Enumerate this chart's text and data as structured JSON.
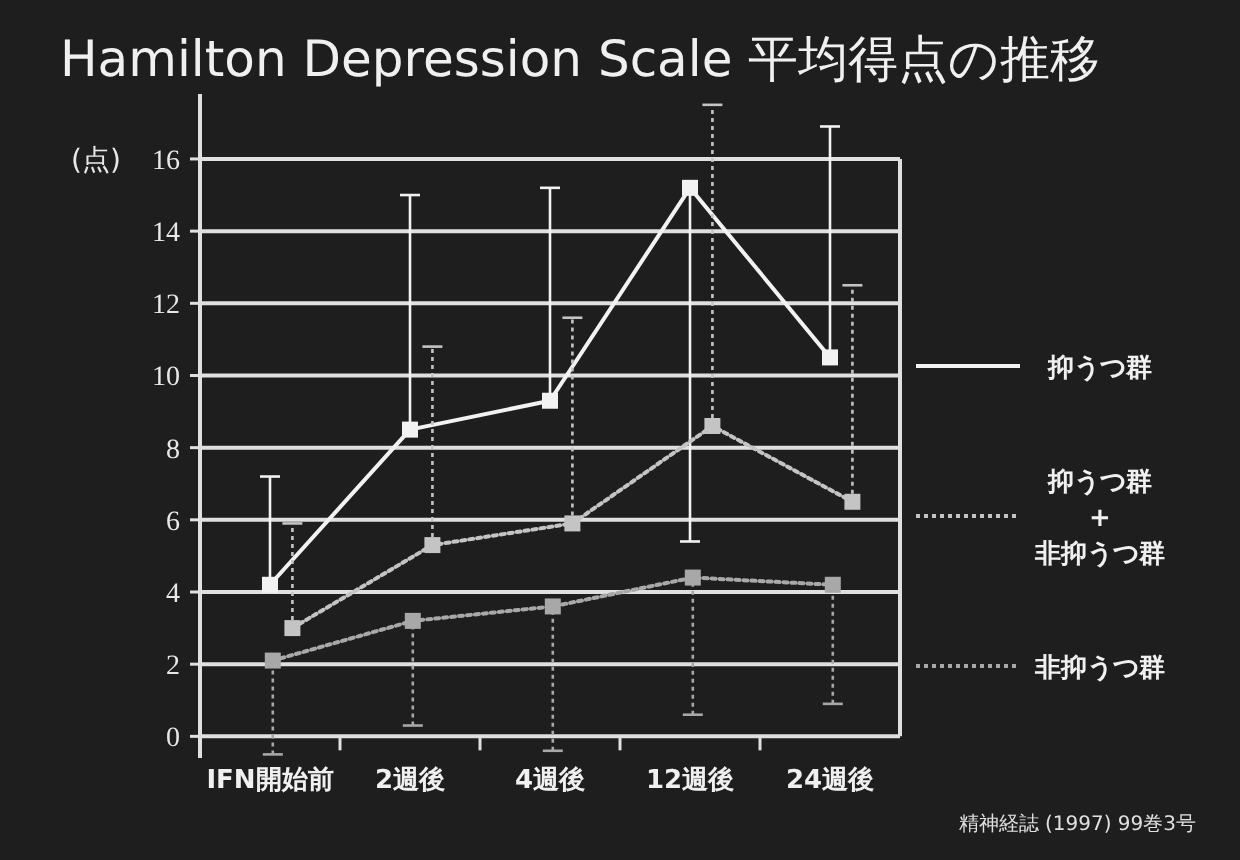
{
  "chart_data": {
    "type": "line",
    "title": "Hamilton Depression Scale 平均得点の推移",
    "ylabel": "(点)",
    "categories": [
      "IFN開始前",
      "2週後",
      "4週後",
      "12週後",
      "24週後"
    ],
    "ylim": [
      -0.6,
      17.8
    ],
    "yticks": [
      0,
      2,
      4,
      6,
      8,
      10,
      12,
      14,
      16
    ],
    "grid": "y",
    "legend": "right",
    "marker": "square",
    "series": [
      {
        "name": "抑うつ群",
        "color": "#f2f2f2",
        "line_style": "solid",
        "values": [
          4.2,
          8.5,
          9.3,
          15.2,
          10.5
        ],
        "errors": [
          [
            4.2,
            7.2
          ],
          [
            8.5,
            15.0
          ],
          [
            9.3,
            15.2
          ],
          [
            5.4,
            15.2
          ],
          [
            10.5,
            16.9
          ]
        ]
      },
      {
        "name": "抑うつ群\n+\n非抑うつ群",
        "color": "#c4c4c4",
        "line_style": "dotted",
        "values": [
          3.0,
          5.3,
          5.9,
          8.6,
          6.5
        ],
        "errors": [
          [
            3.0,
            5.9
          ],
          [
            5.3,
            10.8
          ],
          [
            5.9,
            11.6
          ],
          [
            8.6,
            17.5
          ],
          [
            6.5,
            12.5
          ]
        ]
      },
      {
        "name": "非抑うつ群",
        "color": "#a8a8a8",
        "line_style": "dotted",
        "values": [
          2.1,
          3.2,
          3.6,
          4.4,
          4.2
        ],
        "errors": [
          [
            -0.5,
            2.1
          ],
          [
            0.3,
            3.2
          ],
          [
            -0.4,
            3.6
          ],
          [
            0.6,
            4.4
          ],
          [
            0.9,
            4.2
          ]
        ]
      }
    ],
    "annotations": [
      "精神経誌 (1997) 99巻3号"
    ]
  }
}
